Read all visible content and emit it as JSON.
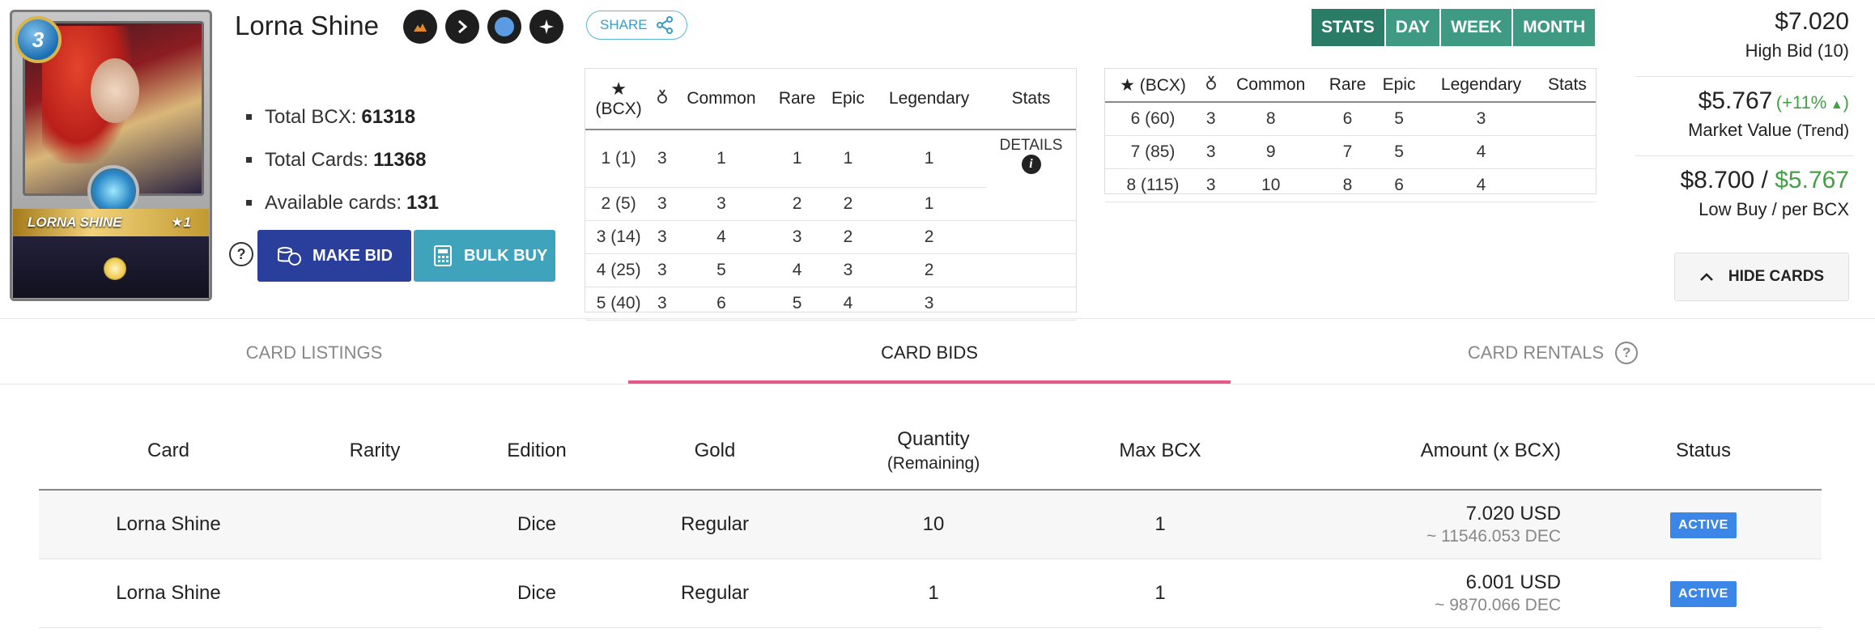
{
  "card": {
    "name": "Lorna Shine",
    "mana": "3",
    "banner_name": "LORNA SHINE",
    "banner_level": "★1"
  },
  "share_label": "SHARE",
  "stats_list": {
    "total_bcx_label": "Total BCX:",
    "total_bcx": "61318",
    "total_cards_label": "Total Cards:",
    "total_cards": "11368",
    "available_label": "Available cards:",
    "available": "131"
  },
  "actions": {
    "make_bid": "MAKE BID",
    "bulk_buy": "BULK BUY",
    "help": "?"
  },
  "level_table_1": {
    "headers": [
      "(BCX)",
      "Common",
      "Rare",
      "Epic",
      "Legendary",
      "Stats"
    ],
    "details_label": "DETAILS",
    "rows": [
      [
        "1 (1)",
        "3",
        "1",
        "1",
        "1",
        "1"
      ],
      [
        "2 (5)",
        "3",
        "3",
        "2",
        "2",
        "1"
      ],
      [
        "3 (14)",
        "3",
        "4",
        "3",
        "2",
        "2"
      ],
      [
        "4 (25)",
        "3",
        "5",
        "4",
        "3",
        "2"
      ],
      [
        "5 (40)",
        "3",
        "6",
        "5",
        "4",
        "3"
      ]
    ]
  },
  "level_table_2": {
    "headers": [
      "(BCX)",
      "Common",
      "Rare",
      "Epic",
      "Legendary",
      "Stats"
    ],
    "rows": [
      [
        "6 (60)",
        "3",
        "8",
        "6",
        "5",
        "3"
      ],
      [
        "7 (85)",
        "3",
        "9",
        "7",
        "5",
        "4"
      ],
      [
        "8 (115)",
        "3",
        "10",
        "8",
        "6",
        "4"
      ]
    ]
  },
  "period_buttons": [
    "STATS",
    "DAY",
    "WEEK",
    "MONTH"
  ],
  "prices": {
    "high_bid": "$7.020",
    "high_bid_label": "High Bid (10)",
    "market_value": "$5.767",
    "trend_open": "(",
    "trend_pct": "+11%",
    "trend_close": ")",
    "market_label": "Market Value",
    "market_label_small": "(Trend)",
    "low_buy": "$8.700 / ",
    "per_bcx": "$5.767",
    "low_buy_label": "Low Buy / per BCX",
    "hide_cards": "HIDE CARDS"
  },
  "tabs": {
    "listings": "CARD LISTINGS",
    "bids": "CARD BIDS",
    "rentals": "CARD RENTALS",
    "help": "?"
  },
  "bids_table": {
    "headers": {
      "card": "Card",
      "rarity": "Rarity",
      "edition": "Edition",
      "gold": "Gold",
      "quantity": "Quantity",
      "quantity_sub": "(Remaining)",
      "max_bcx": "Max BCX",
      "amount": "Amount (x BCX)",
      "status": "Status"
    },
    "rows": [
      {
        "card": "Lorna Shine",
        "rarity": "",
        "edition": "Dice",
        "gold": "Regular",
        "quantity": "10",
        "max_bcx": "1",
        "amount": "7.020 USD",
        "amount_dec": "~ 11546.053 DEC",
        "status": "ACTIVE"
      },
      {
        "card": "Lorna Shine",
        "rarity": "",
        "edition": "Dice",
        "gold": "Regular",
        "quantity": "1",
        "max_bcx": "1",
        "amount": "6.001 USD",
        "amount_dec": "~ 9870.066 DEC",
        "status": "ACTIVE"
      }
    ]
  },
  "colors": {
    "accent_tab": "#e6578a",
    "period_green": "#3e9a82",
    "make_bid_blue": "#2a3f9c",
    "bulk_buy_teal": "#3fa3bb",
    "status_blue": "#3b86e6",
    "trend_green": "#43a047"
  }
}
